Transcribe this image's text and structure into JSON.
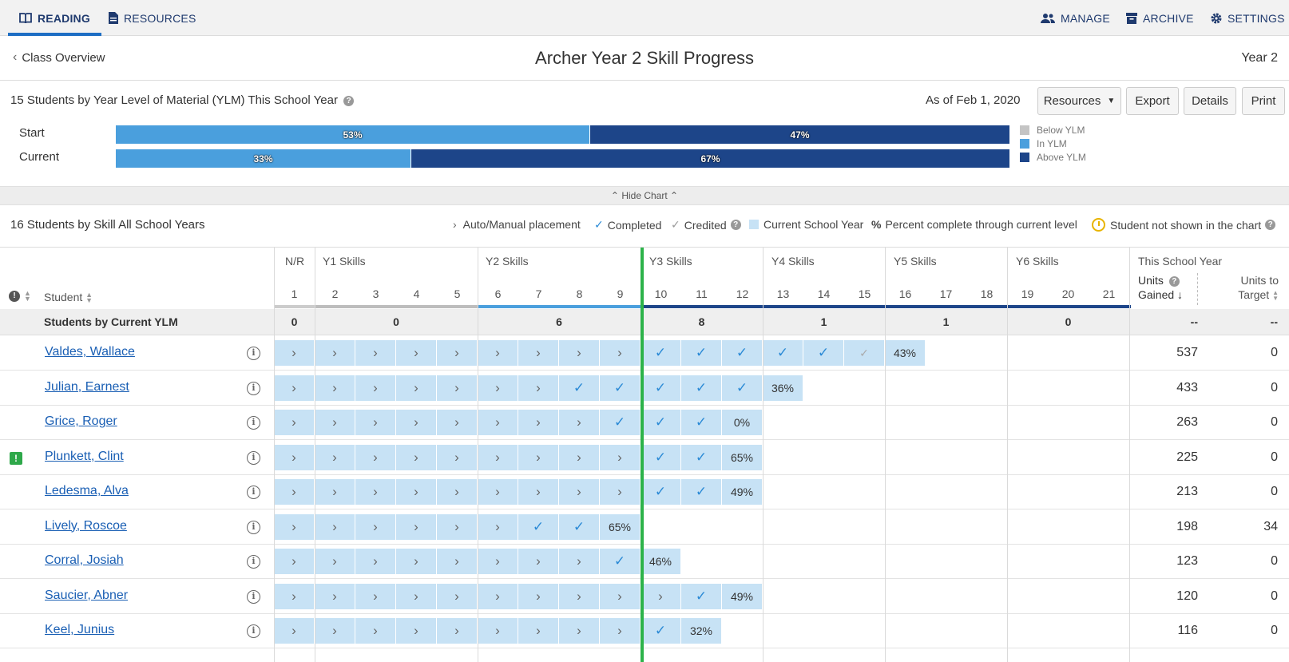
{
  "nav": {
    "left": [
      {
        "label": "READING",
        "icon": "book-icon",
        "active": true
      },
      {
        "label": "RESOURCES",
        "icon": "document-icon",
        "active": false
      }
    ],
    "right": [
      {
        "label": "MANAGE",
        "icon": "people-icon"
      },
      {
        "label": "ARCHIVE",
        "icon": "archive-icon"
      },
      {
        "label": "SETTINGS",
        "icon": "gear-icon"
      }
    ]
  },
  "header": {
    "back_label": "Class Overview",
    "title": "Archer Year 2 Skill Progress",
    "year": "Year 2"
  },
  "ylm": {
    "count": "15",
    "title_rest": "Students by Year Level of Material (YLM) This School Year",
    "as_of": "As of Feb 1, 2020",
    "buttons": {
      "resources": "Resources",
      "export": "Export",
      "details": "Details",
      "print": "Print"
    },
    "legend": [
      "Below YLM",
      "In YLM",
      "Above YLM"
    ],
    "colors": {
      "below": "#c4c4c4",
      "in": "#4a9fdd",
      "above": "#1d4589"
    },
    "chart_data": {
      "type": "bar",
      "categories": [
        "Start",
        "Current"
      ],
      "series": [
        {
          "name": "In YLM",
          "values": [
            53,
            33
          ]
        },
        {
          "name": "Above YLM",
          "values": [
            47,
            67
          ]
        }
      ]
    },
    "bars": [
      {
        "label": "Start",
        "in_pct": "53%",
        "above_pct": "47%",
        "in": 53,
        "above": 47
      },
      {
        "label": "Current",
        "in_pct": "33%",
        "above_pct": "67%",
        "in": 33,
        "above": 67
      }
    ],
    "hide_chart": "Hide Chart"
  },
  "skills": {
    "count": "16",
    "title_rest": "Students by Skill All School Years",
    "legend": {
      "auto": "Auto/Manual placement",
      "completed": "Completed",
      "credited": "Credited",
      "current_year": "Current School Year",
      "percent_symbol": "%",
      "percent": "Percent complete through current level",
      "not_shown": "Student not shown in the chart"
    }
  },
  "table": {
    "student_header": "Student",
    "groups": [
      "N/R",
      "Y1 Skills",
      "Y2 Skills",
      "Y3 Skills",
      "Y4 Skills",
      "Y5 Skills",
      "Y6 Skills"
    ],
    "this_year": "This School Year",
    "units_gained": "Units",
    "units_gained2": "Gained",
    "units_target": "Units to",
    "units_target2": "Target",
    "columns": [
      "1",
      "2",
      "3",
      "4",
      "5",
      "6",
      "7",
      "8",
      "9",
      "10",
      "11",
      "12",
      "13",
      "14",
      "15",
      "16",
      "17",
      "18",
      "19",
      "20",
      "21"
    ],
    "summary_label": "Students by Current YLM",
    "summary": [
      "0",
      "0",
      "6",
      "8",
      "1",
      "1",
      "0",
      "--",
      "--"
    ],
    "rows": [
      {
        "name": "Valdes, Wallace",
        "alert": false,
        "cells": [
          ">",
          ">",
          ">",
          ">",
          ">",
          ">",
          ">",
          ">",
          ">",
          "c",
          "c",
          "c",
          "c",
          "c",
          "cr",
          "43%"
        ],
        "gained": "537",
        "target": "0"
      },
      {
        "name": "Julian, Earnest",
        "alert": false,
        "cells": [
          ">",
          ">",
          ">",
          ">",
          ">",
          ">",
          ">",
          "c",
          "c",
          "c",
          "c",
          "c",
          "36%"
        ],
        "gained": "433",
        "target": "0"
      },
      {
        "name": "Grice, Roger",
        "alert": false,
        "cells": [
          ">",
          ">",
          ">",
          ">",
          ">",
          ">",
          ">",
          ">",
          "c",
          "c",
          "c",
          "0%"
        ],
        "gained": "263",
        "target": "0"
      },
      {
        "name": "Plunkett, Clint",
        "alert": true,
        "cells": [
          ">",
          ">",
          ">",
          ">",
          ">",
          ">",
          ">",
          ">",
          ">",
          "c",
          "c",
          "65%"
        ],
        "gained": "225",
        "target": "0"
      },
      {
        "name": "Ledesma, Alva",
        "alert": false,
        "cells": [
          ">",
          ">",
          ">",
          ">",
          ">",
          ">",
          ">",
          ">",
          ">",
          "c",
          "c",
          "49%"
        ],
        "gained": "213",
        "target": "0"
      },
      {
        "name": "Lively, Roscoe",
        "alert": false,
        "cells": [
          ">",
          ">",
          ">",
          ">",
          ">",
          ">",
          "c",
          "c",
          "65%"
        ],
        "gained": "198",
        "target": "34"
      },
      {
        "name": "Corral, Josiah",
        "alert": false,
        "cells": [
          ">",
          ">",
          ">",
          ">",
          ">",
          ">",
          ">",
          ">",
          "c",
          "46%"
        ],
        "gained": "123",
        "target": "0"
      },
      {
        "name": "Saucier, Abner",
        "alert": false,
        "cells": [
          ">",
          ">",
          ">",
          ">",
          ">",
          ">",
          ">",
          ">",
          ">",
          ">",
          "c",
          "49%"
        ],
        "gained": "120",
        "target": "0"
      },
      {
        "name": "Keel, Junius",
        "alert": false,
        "cells": [
          ">",
          ">",
          ">",
          ">",
          ">",
          ">",
          ">",
          ">",
          ">",
          "c",
          "32%"
        ],
        "gained": "116",
        "target": "0"
      }
    ]
  }
}
